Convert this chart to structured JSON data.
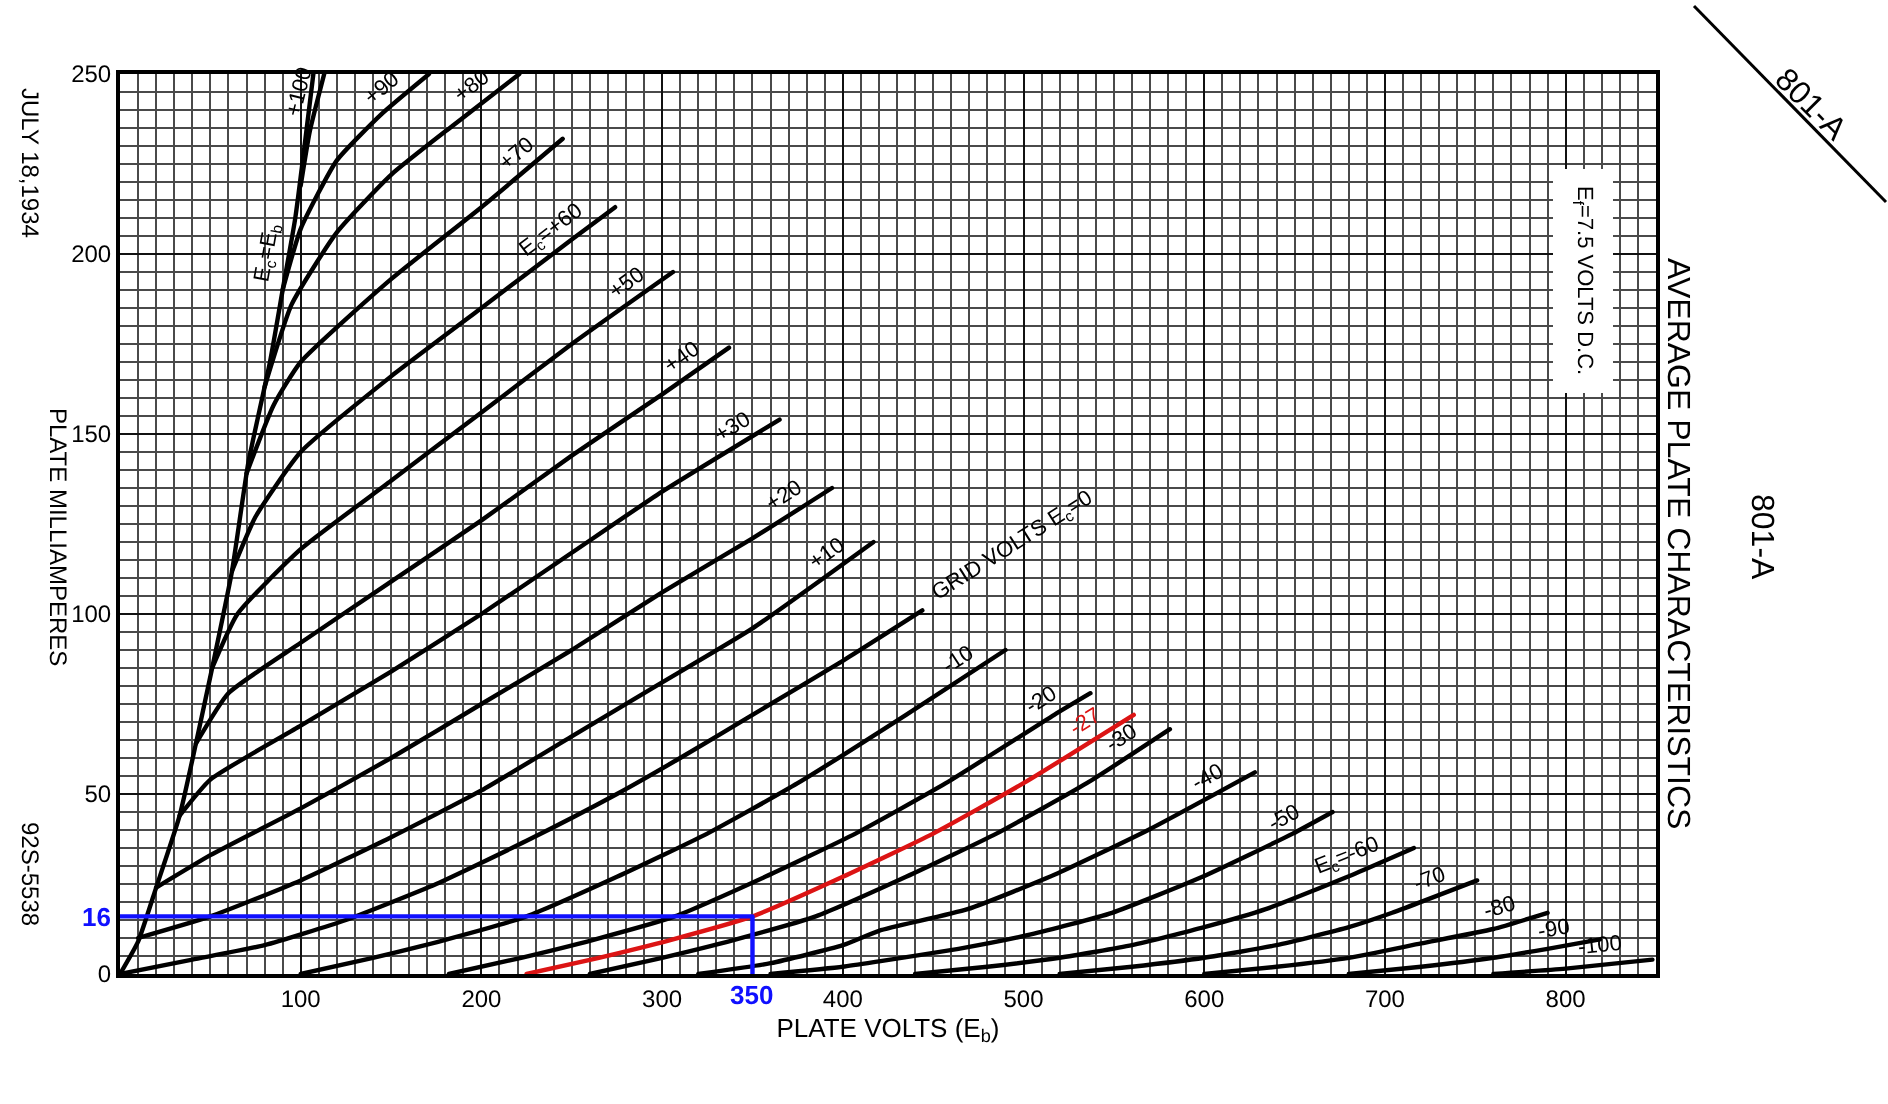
{
  "chart_data": {
    "type": "line",
    "title": "AVERAGE PLATE CHARACTERISTICS",
    "subtitle": "801-A",
    "xlabel": "PLATE VOLTS (E$_{b}$)",
    "ylabel": "PLATE MILLIAMPERES",
    "annotations": [
      "JULY 18,1934",
      "92S-5538",
      "E$_{f}$=7.5 VOLTS D.C.",
      "801-A",
      {
        "text": "16",
        "x": 0,
        "y": 16
      },
      {
        "text": "350",
        "x": 350,
        "y": 0
      }
    ],
    "xlim": [
      0,
      850
    ],
    "ylim": [
      0,
      250
    ],
    "xticks": [
      100,
      200,
      300,
      400,
      500,
      600,
      700,
      800
    ],
    "yticks": [
      0,
      50,
      100,
      150,
      200,
      250
    ],
    "grid": true,
    "legend": false,
    "marker": "none",
    "line_style": "solid",
    "series": [
      {
        "name": "E$_{c}$=E$_{b}$",
        "color": "#000000",
        "x": [
          0,
          10,
          20,
          33,
          42,
          51,
          62,
          71,
          83,
          90,
          97,
          107
        ],
        "values": [
          0,
          9,
          24,
          44,
          64,
          85,
          112,
          142,
          170,
          190,
          210,
          250
        ]
      },
      {
        "name": "+100",
        "color": "#000000",
        "x": [
          100,
          105,
          113
        ],
        "values": [
          219,
          234,
          250
        ]
      },
      {
        "name": "+90",
        "color": "#000000",
        "x": [
          90,
          100,
          120,
          145,
          171
        ],
        "values": [
          190,
          207,
          226,
          239,
          250
        ]
      },
      {
        "name": "+80",
        "color": "#000000",
        "x": [
          80,
          95,
          120,
          150,
          185,
          221
        ],
        "values": [
          163,
          186,
          206,
          222,
          236,
          250
        ]
      },
      {
        "name": "+70",
        "color": "#000000",
        "x": [
          70,
          85,
          100,
          150,
          200,
          245
        ],
        "values": [
          139,
          158,
          170,
          193,
          213,
          232
        ]
      },
      {
        "name": "E$_{c}$=+60",
        "color": "#000000",
        "x": [
          62,
          75,
          100,
          150,
          200,
          250,
          274
        ],
        "values": [
          112,
          127,
          145,
          166,
          185,
          204,
          213
        ]
      },
      {
        "name": "+50",
        "color": "#000000",
        "x": [
          51,
          65,
          100,
          150,
          200,
          250,
          306
        ],
        "values": [
          85,
          100,
          118,
          137,
          156,
          175,
          195
        ]
      },
      {
        "name": "+40",
        "color": "#000000",
        "x": [
          42,
          60,
          100,
          150,
          200,
          250,
          300,
          337
        ],
        "values": [
          64,
          78,
          92,
          109,
          126,
          144,
          161,
          174
        ]
      },
      {
        "name": "+30",
        "color": "#000000",
        "x": [
          33,
          50,
          100,
          150,
          200,
          250,
          300,
          365
        ],
        "values": [
          44,
          54,
          69,
          84,
          100,
          117,
          134,
          154
        ]
      },
      {
        "name": "+20",
        "color": "#000000",
        "x": [
          20,
          50,
          100,
          150,
          200,
          250,
          300,
          350,
          394
        ],
        "values": [
          24,
          33,
          46,
          60,
          75,
          90,
          106,
          121,
          135
        ]
      },
      {
        "name": "+10",
        "color": "#000000",
        "x": [
          10,
          50,
          100,
          150,
          200,
          250,
          300,
          350,
          417
        ],
        "values": [
          10,
          16,
          26,
          38,
          51,
          66,
          81,
          96,
          120
        ]
      },
      {
        "name": "GRID VOLTS E$_{c}$=0",
        "color": "#000000",
        "x": [
          0,
          40,
          80,
          125,
          175,
          225,
          275,
          310,
          350,
          400,
          444
        ],
        "values": [
          0,
          4,
          8,
          15,
          25,
          37,
          50,
          60,
          72,
          87,
          101
        ]
      },
      {
        "name": "-10",
        "color": "#000000",
        "x": [
          100,
          140,
          180,
          225,
          275,
          325,
          375,
          435,
          490
        ],
        "values": [
          0,
          4.5,
          9.5,
          16,
          27,
          39,
          53,
          72,
          90
        ]
      },
      {
        "name": "-20",
        "color": "#000000",
        "x": [
          182,
          222,
          262,
          307,
          357,
          407,
          457,
          517,
          537
        ],
        "values": [
          0,
          4.5,
          9.5,
          16,
          27,
          39,
          53,
          72,
          78
        ]
      },
      {
        "name": "-27",
        "color": "#dc1414",
        "x": [
          225,
          265,
          305,
          350,
          400,
          450,
          500,
          561
        ],
        "values": [
          0,
          4.5,
          9.5,
          16,
          27,
          39,
          53,
          72
        ]
      },
      {
        "name": "-30",
        "color": "#000000",
        "x": [
          260,
          300,
          340,
          385,
          435,
          485,
          535,
          581
        ],
        "values": [
          0,
          4.5,
          9.5,
          16,
          27,
          39,
          53,
          68
        ]
      },
      {
        "name": "-40",
        "color": "#000000",
        "x": [
          320,
          360,
          400,
          420,
          469,
          519,
          569,
          628
        ],
        "values": [
          0,
          3,
          8,
          12,
          18,
          28,
          40,
          56
        ]
      },
      {
        "name": "-50",
        "color": "#000000",
        "x": [
          360,
          400,
          420,
          464,
          504,
          549,
          599,
          649,
          671
        ],
        "values": [
          0,
          2,
          3.5,
          7,
          11,
          17,
          27,
          39,
          45
        ]
      },
      {
        "name": "E$_{c}$=-60",
        "color": "#000000",
        "x": [
          440,
          480,
          520,
          560,
          600,
          634,
          684,
          716
        ],
        "values": [
          0,
          2,
          4.5,
          8,
          13,
          18,
          28,
          35
        ]
      },
      {
        "name": "-70",
        "color": "#000000",
        "x": [
          520,
          560,
          600,
          640,
          680,
          704,
          751
        ],
        "values": [
          0,
          2,
          4.5,
          8,
          13,
          17,
          26
        ]
      },
      {
        "name": "-80",
        "color": "#000000",
        "x": [
          600,
          640,
          680,
          720,
          760,
          790
        ],
        "values": [
          0,
          2,
          4.5,
          8.5,
          12.5,
          17
        ]
      },
      {
        "name": "-90",
        "color": "#000000",
        "x": [
          680,
          720,
          760,
          790,
          819
        ],
        "values": [
          0,
          2,
          4.5,
          7,
          9.6
        ]
      },
      {
        "name": "-100",
        "color": "#000000",
        "x": [
          760,
          800,
          848
        ],
        "values": [
          0,
          1.5,
          4
        ]
      },
      {
        "color": "#1010ff",
        "x": [
          0,
          350,
          350
        ],
        "values": [
          16,
          16,
          0
        ]
      }
    ]
  }
}
